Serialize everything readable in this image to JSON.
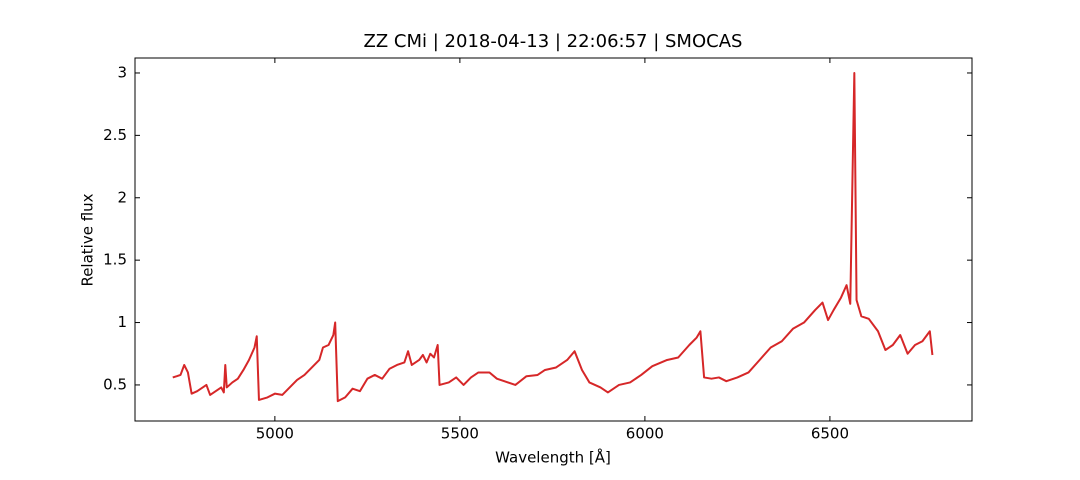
{
  "chart_data": {
    "type": "line",
    "title": "ZZ CMi | 2018-04-13 | 22:06:57 | SMOCAS",
    "x_label": "Wavelength [Å]",
    "y_label": "Relative flux",
    "xlim": [
      4622,
      6884
    ],
    "ylim": [
      0.211,
      3.12
    ],
    "xticks": [
      5000,
      5500,
      6000,
      6500
    ],
    "yticks": [
      0.5,
      1.0,
      1.5,
      2.0,
      2.5,
      3.0
    ],
    "series": [
      {
        "color": "#d62728",
        "x": [
          4724,
          4735,
          4745,
          4755,
          4765,
          4775,
          4790,
          4805,
          4815,
          4825,
          4840,
          4855,
          4862,
          4866,
          4870,
          4885,
          4900,
          4915,
          4930,
          4945,
          4951,
          4957,
          4980,
          5000,
          5020,
          5040,
          5060,
          5080,
          5100,
          5120,
          5130,
          5145,
          5158,
          5163,
          5170,
          5190,
          5210,
          5230,
          5250,
          5270,
          5290,
          5310,
          5330,
          5350,
          5360,
          5370,
          5390,
          5400,
          5410,
          5420,
          5430,
          5440,
          5445,
          5470,
          5490,
          5510,
          5530,
          5550,
          5580,
          5600,
          5620,
          5650,
          5680,
          5710,
          5730,
          5760,
          5790,
          5810,
          5830,
          5850,
          5880,
          5900,
          5930,
          5960,
          5990,
          6020,
          6060,
          6090,
          6120,
          6140,
          6150,
          6160,
          6180,
          6200,
          6220,
          6250,
          6280,
          6310,
          6340,
          6370,
          6400,
          6430,
          6460,
          6480,
          6495,
          6510,
          6530,
          6545,
          6555,
          6566,
          6572,
          6585,
          6605,
          6630,
          6650,
          6670,
          6690,
          6710,
          6730,
          6750,
          6770,
          6777
        ],
        "values": [
          0.56,
          0.57,
          0.58,
          0.66,
          0.6,
          0.43,
          0.45,
          0.48,
          0.5,
          0.42,
          0.45,
          0.48,
          0.44,
          0.66,
          0.48,
          0.52,
          0.55,
          0.62,
          0.7,
          0.8,
          0.89,
          0.38,
          0.4,
          0.43,
          0.42,
          0.48,
          0.54,
          0.58,
          0.64,
          0.7,
          0.8,
          0.82,
          0.9,
          1.0,
          0.37,
          0.4,
          0.47,
          0.45,
          0.55,
          0.58,
          0.55,
          0.63,
          0.66,
          0.68,
          0.77,
          0.66,
          0.7,
          0.74,
          0.68,
          0.75,
          0.72,
          0.82,
          0.5,
          0.52,
          0.56,
          0.5,
          0.56,
          0.6,
          0.6,
          0.55,
          0.53,
          0.5,
          0.57,
          0.58,
          0.62,
          0.64,
          0.7,
          0.77,
          0.62,
          0.52,
          0.48,
          0.44,
          0.5,
          0.52,
          0.58,
          0.65,
          0.7,
          0.72,
          0.82,
          0.88,
          0.93,
          0.56,
          0.55,
          0.56,
          0.53,
          0.56,
          0.6,
          0.7,
          0.8,
          0.85,
          0.95,
          1.0,
          1.1,
          1.16,
          1.02,
          1.1,
          1.2,
          1.3,
          1.15,
          3.0,
          1.18,
          1.05,
          1.03,
          0.93,
          0.78,
          0.82,
          0.9,
          0.75,
          0.82,
          0.85,
          0.93,
          0.74
        ]
      }
    ]
  }
}
